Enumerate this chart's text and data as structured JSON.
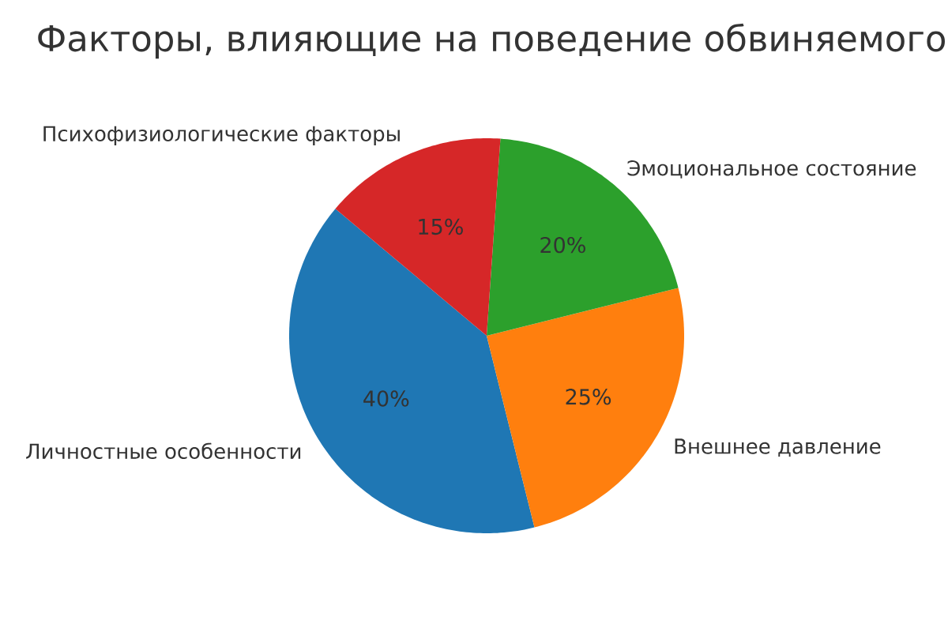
{
  "chart_data": {
    "type": "pie",
    "title": "Факторы, влияющие на поведение обвиняемого",
    "categories": [
      "Личностные особенности",
      "Внешнее давление",
      "Эмоциональное состояние",
      "Психофизиологические факторы"
    ],
    "values": [
      40,
      25,
      20,
      15
    ],
    "colors": [
      "#1f77b4",
      "#ff7f0e",
      "#2ca02c",
      "#d62728"
    ],
    "value_labels": [
      "40%",
      "25%",
      "20%",
      "15%"
    ]
  }
}
